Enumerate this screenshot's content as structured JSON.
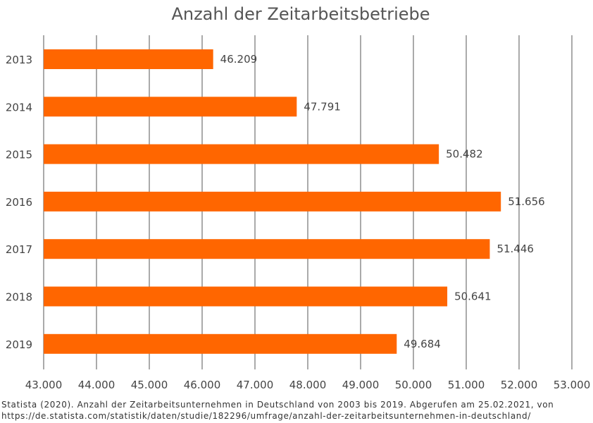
{
  "chart_data": {
    "type": "bar",
    "orientation": "horizontal",
    "title": "Anzahl der Zeitarbeitsbetriebe",
    "xlabel": "",
    "ylabel": "",
    "categories": [
      "2013",
      "2014",
      "2015",
      "2016",
      "2017",
      "2018",
      "2019"
    ],
    "values": [
      46209,
      47791,
      50482,
      51656,
      51446,
      50641,
      49684
    ],
    "data_labels": [
      "46.209",
      "47.791",
      "50.482",
      "51.656",
      "51.446",
      "50.641",
      "49.684"
    ],
    "xlim": [
      43000,
      53000
    ],
    "x_ticks": [
      43000,
      44000,
      45000,
      46000,
      47000,
      48000,
      49000,
      50000,
      51000,
      52000,
      53000
    ],
    "x_tick_labels": [
      "43.000",
      "44.000",
      "45.000",
      "46.000",
      "47.000",
      "48.000",
      "49.000",
      "50.000",
      "51.000",
      "52.000",
      "53.000"
    ],
    "grid": true,
    "legend": "none",
    "bar_color": "#ff6600",
    "grid_color": "#555555"
  },
  "source": {
    "line1": "Statista (2020). Anzahl der Zeitarbeitsunternehmen  in Deutschland von 2003 bis 2019. Abgerufen am 25.02.2021,  von",
    "line2": "https://de.statista.com/statistik/daten/studie/182296/umfrage/anzahl-der-zeitarbeitsunternehmen-in-deutschland/"
  }
}
